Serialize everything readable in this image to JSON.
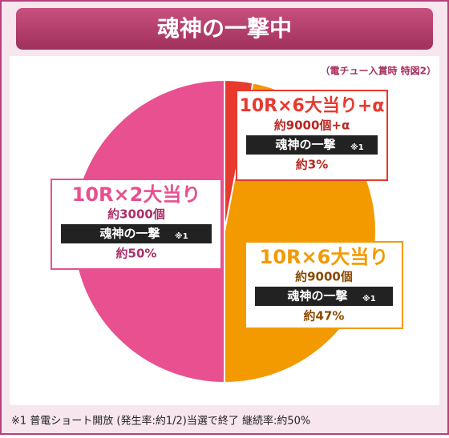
{
  "chart_data": {
    "type": "pie",
    "title": "魂神の一撃中",
    "subtitle": "（電チュー入賞時 特図2）",
    "categories": [
      "10R×6大当り+α",
      "10R×6大当り",
      "10R×2大当り"
    ],
    "values": [
      3,
      47,
      50
    ],
    "value_labels": [
      "約3%",
      "約47%",
      "約50%"
    ],
    "payouts": [
      "約9000個+α",
      "約9000個",
      "約3000個"
    ],
    "tags": [
      "魂神の一撃",
      "魂神の一撃",
      "魂神の一撃"
    ],
    "tag_notes": [
      "※1",
      "※1",
      "※1"
    ],
    "colors": [
      "#e8392f",
      "#f39a00",
      "#e8508f"
    ],
    "footnote": "※1 普電ショート開放 (発生率:約1/2)当選で終了 継続率:約50%"
  }
}
